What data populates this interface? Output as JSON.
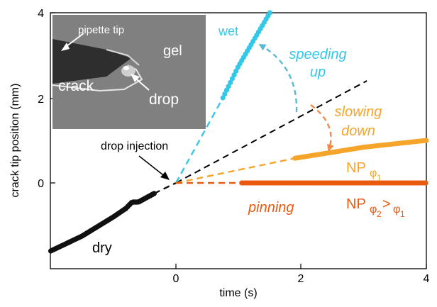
{
  "chart_data": {
    "type": "scatter",
    "xlabel": "time (s)",
    "ylabel": "crack tip position (mm)",
    "xlim": [
      -2,
      4
    ],
    "ylim": [
      -2.1,
      4
    ],
    "x_ticks": [
      "0",
      "2",
      "4"
    ],
    "y_ticks": [
      "0",
      "2",
      "4"
    ],
    "x_tick_values": [
      0,
      2,
      4
    ],
    "y_tick_values": [
      0,
      2,
      4
    ],
    "grid": false,
    "inset": {
      "labels": {
        "pipette_tip": "pipette tip",
        "gel": "gel",
        "crack": "crack",
        "drop": "drop"
      }
    },
    "annotations": {
      "drop_injection": "drop injection",
      "speeding_up": [
        "speeding",
        "up"
      ],
      "slowing_down": [
        "slowing",
        "down"
      ],
      "pinning": "pinning",
      "wet": "wet",
      "dry": "dry",
      "np1_main": "NP",
      "np1_sub": "φ",
      "np1_subsub": "1",
      "np2_main": "NP",
      "np2_sub": "φ",
      "np2_subsub": "2",
      "np2_gt": ">",
      "np2_sub2": "φ",
      "np2_sub2sub": "1"
    },
    "colors": {
      "dry": "#111111",
      "wet": "#33c8e8",
      "np1": "#f5a52a",
      "np2": "#e85a10",
      "arrow_up": "#5bb9d6",
      "arrow_down": "#ef8a4a"
    },
    "series": [
      {
        "name": "dry",
        "x": [
          -2.0,
          -1.5,
          -1.0,
          -0.8,
          -0.7,
          -0.6,
          -0.35
        ],
        "y": [
          -1.6,
          -1.25,
          -0.8,
          -0.6,
          -0.45,
          -0.45,
          -0.25
        ]
      },
      {
        "name": "wet",
        "x": [
          0.0,
          0.75,
          1.0,
          1.5
        ],
        "y": [
          0.0,
          2.0,
          2.75,
          4.0
        ]
      },
      {
        "name": "NP φ1",
        "x": [
          0.0,
          1.9,
          2.5,
          3.0,
          4.0
        ],
        "y": [
          0.0,
          0.58,
          0.72,
          0.84,
          1.0
        ]
      },
      {
        "name": "NP φ2>φ1",
        "x": [
          0.0,
          1.05,
          2.0,
          3.0,
          4.0
        ],
        "y": [
          0.0,
          0.0,
          0.0,
          0.0,
          0.0
        ]
      }
    ],
    "reference_line": {
      "x": [
        0.0,
        3.05
      ],
      "y": [
        0.0,
        2.4
      ]
    }
  }
}
